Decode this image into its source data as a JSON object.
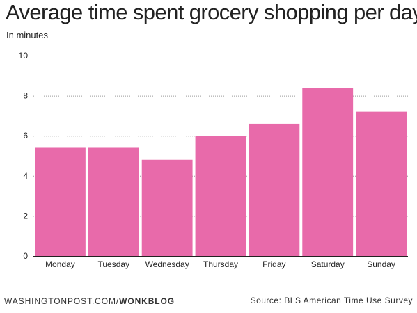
{
  "chart_data": {
    "type": "bar",
    "title": "Average time spent grocery shopping per day",
    "subtitle": "In minutes",
    "categories": [
      "Monday",
      "Tuesday",
      "Wednesday",
      "Thursday",
      "Friday",
      "Saturday",
      "Sunday"
    ],
    "values": [
      5.4,
      5.4,
      4.8,
      6.0,
      6.6,
      8.4,
      7.2
    ],
    "ylim": [
      0,
      10
    ],
    "yticks": [
      0,
      2,
      4,
      6,
      8,
      10
    ],
    "grid": true,
    "bar_color": "#e86aaa",
    "legend": "none"
  },
  "footer": {
    "site": "WASHINGTONPOST.COM/",
    "brand": "WONKBLOG",
    "source": "Source: BLS American Time Use Survey"
  }
}
